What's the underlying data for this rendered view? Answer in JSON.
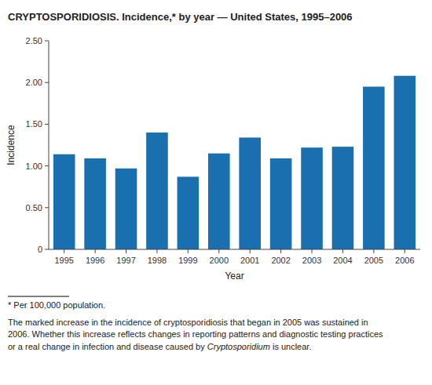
{
  "chart_data": {
    "type": "bar",
    "title": "CRYPTOSPORIDIOSIS. Incidence,* by year — United States, 1995–2006",
    "categories": [
      "1995",
      "1996",
      "1997",
      "1998",
      "1999",
      "2000",
      "2001",
      "2002",
      "2003",
      "2004",
      "2005",
      "2006"
    ],
    "values": [
      1.14,
      1.09,
      0.97,
      1.4,
      0.87,
      1.15,
      1.34,
      1.09,
      1.22,
      1.23,
      1.95,
      2.08
    ],
    "color": "#1a6faf",
    "xlabel": "Year",
    "ylabel": "Incidence",
    "ylim": [
      0,
      2.5
    ],
    "yticks": [
      0,
      {
        "value": 0.5,
        "label": "0.50"
      },
      {
        "value": 1.0,
        "label": "1.00"
      },
      {
        "value": 1.5,
        "label": "1.50"
      },
      {
        "value": 2.0,
        "label": "2.00"
      },
      {
        "value": 2.5,
        "label": "2.50"
      }
    ],
    "grid": false,
    "annotations": [
      "* Per 100,000 population.",
      "The marked increase in the incidence of cryptosporidiosis that began in 2005 was sustained in",
      "2006. Whether this increase reflects changes in reporting patterns and diagnostic testing practices",
      [
        "or a real change in infection and disease caused by ",
        "Cryptosporidium",
        " is unclear."
      ]
    ]
  }
}
